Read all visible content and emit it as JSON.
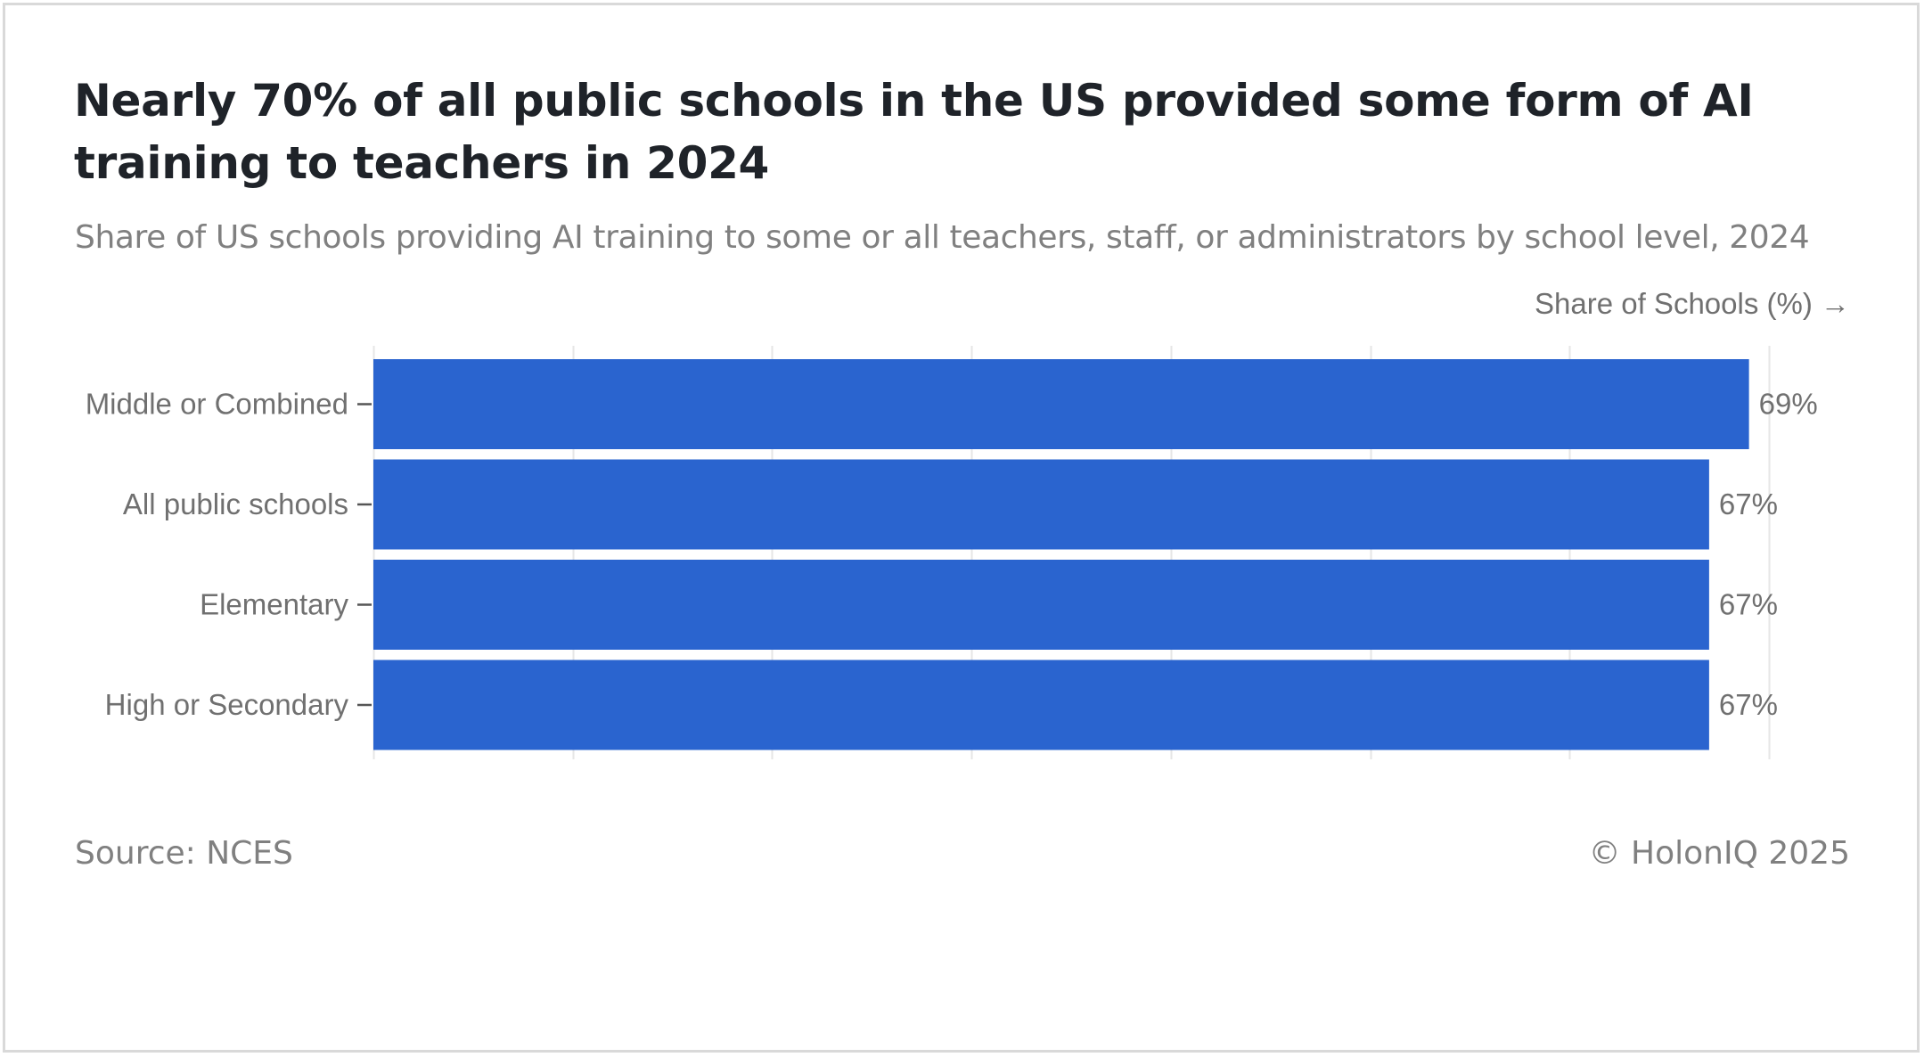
{
  "header": {
    "title": "Nearly 70% of all public schools in the US provided some form of AI training to teachers in 2024",
    "subtitle": "Share of US schools providing AI training to some or all teachers, staff, or administrators by school level, 2024"
  },
  "footer": {
    "source": "Source: NCES",
    "copyright": "© HolonIQ 2025"
  },
  "colors": {
    "bar": "#2a64cf",
    "grid": "#e6e6e6",
    "axis_text": "#707070",
    "tick": "#555555"
  },
  "chart_data": {
    "type": "bar",
    "orientation": "horizontal",
    "title": "",
    "xlabel": "Share of Schools (%) →",
    "ylabel": "",
    "xlim": [
      0,
      70
    ],
    "grid": true,
    "categories": [
      "Middle or Combined",
      "All public schools",
      "Elementary",
      "High or Secondary"
    ],
    "values": [
      69,
      67,
      67,
      67
    ],
    "value_labels": [
      "69%",
      "67%",
      "67%",
      "67%"
    ]
  }
}
